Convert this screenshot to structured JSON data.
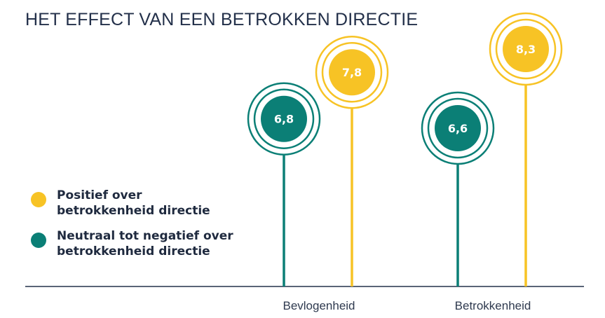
{
  "chart_data": {
    "type": "lollipop",
    "title": "HET EFFECT VAN EEN BETROKKEN DIRECTIE",
    "categories": [
      "Bevlogenheid",
      "Betrokkenheid"
    ],
    "series": [
      {
        "name": "Neutraal tot negatief over\nbetrokkenheid directie",
        "color": "#0b7f76",
        "values": [
          6.8,
          6.6
        ],
        "labels": [
          "6,8",
          "6,6"
        ]
      },
      {
        "name": "Positief over\nbetrokkenheid directie",
        "color": "#f7c325",
        "values": [
          7.8,
          8.3
        ],
        "labels": [
          "7,8",
          "8,3"
        ]
      }
    ],
    "legend": [
      {
        "label": "Positief over\nbetrokkenheid directie",
        "color": "#f7c325"
      },
      {
        "label": "Neutraal tot negatief over\nbetrokkenheid directie",
        "color": "#0b7f76"
      }
    ],
    "ylim": [
      3.2,
      8.3
    ],
    "axis_color": "#23304a",
    "legend_position": "left"
  }
}
